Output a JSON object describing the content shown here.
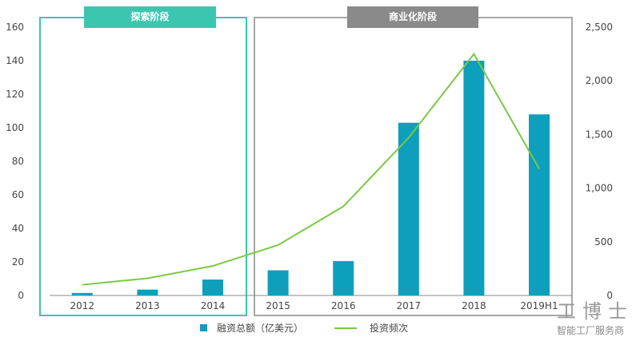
{
  "chart_data": {
    "type": "bar+line",
    "categories": [
      "2012",
      "2013",
      "2014",
      "2015",
      "2016",
      "2017",
      "2018",
      "2019H1"
    ],
    "series": [
      {
        "name": "融资总额（亿美元）",
        "type": "bar",
        "axis": "left",
        "color": "#0e9fbd",
        "values": [
          1.5,
          3.5,
          9.5,
          15,
          20.5,
          103,
          140,
          108
        ]
      },
      {
        "name": "投资频次",
        "type": "line",
        "axis": "right",
        "color": "#7ac943",
        "values": [
          100,
          160,
          275,
          470,
          830,
          1470,
          2250,
          1180
        ]
      }
    ],
    "left_axis": {
      "ylim": [
        0,
        160
      ],
      "ticks": [
        "0",
        "20",
        "40",
        "60",
        "80",
        "100",
        "120",
        "140",
        "160"
      ]
    },
    "right_axis": {
      "ylim": [
        0,
        2500
      ],
      "ticks": [
        "0",
        "500",
        "1,000",
        "1,500",
        "2,000",
        "2,500"
      ]
    },
    "phases": [
      {
        "label": "探索阶段",
        "color": "#3cc6b0",
        "categories": [
          "2012",
          "2013",
          "2014"
        ]
      },
      {
        "label": "商业化阶段",
        "color": "#8a8a8a",
        "categories": [
          "2015",
          "2016",
          "2017",
          "2018",
          "2019H1"
        ]
      }
    ],
    "legend_position": "bottom",
    "grid": false
  },
  "watermark": {
    "brand": "工博士",
    "tagline": "智能工厂服务商"
  }
}
